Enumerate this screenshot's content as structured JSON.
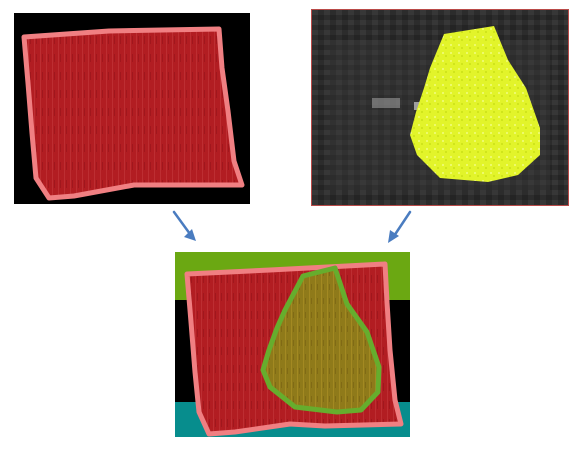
{
  "figure": {
    "panels": [
      {
        "id": "left",
        "content": "red-segmentation-mask"
      },
      {
        "id": "right",
        "content": "grayscale-with-yellow-mask"
      },
      {
        "id": "bottom",
        "content": "combined-overlay"
      }
    ],
    "colors": {
      "red_mask": "#b21d22",
      "red_outline": "#f07f82",
      "yellow_mask": "#e2f42a",
      "olive_overlay": "#8f7a1a",
      "green_outline": "#66ad2d",
      "green_band": "#6ba812",
      "teal_band": "#078d8d",
      "arrow": "#4a7cc0",
      "gray_bg": "#2a2a2a"
    },
    "arrows": [
      {
        "from": "left",
        "to": "bottom",
        "icon": "arrow-down-right-icon"
      },
      {
        "from": "right",
        "to": "bottom",
        "icon": "arrow-down-left-icon"
      }
    ]
  }
}
